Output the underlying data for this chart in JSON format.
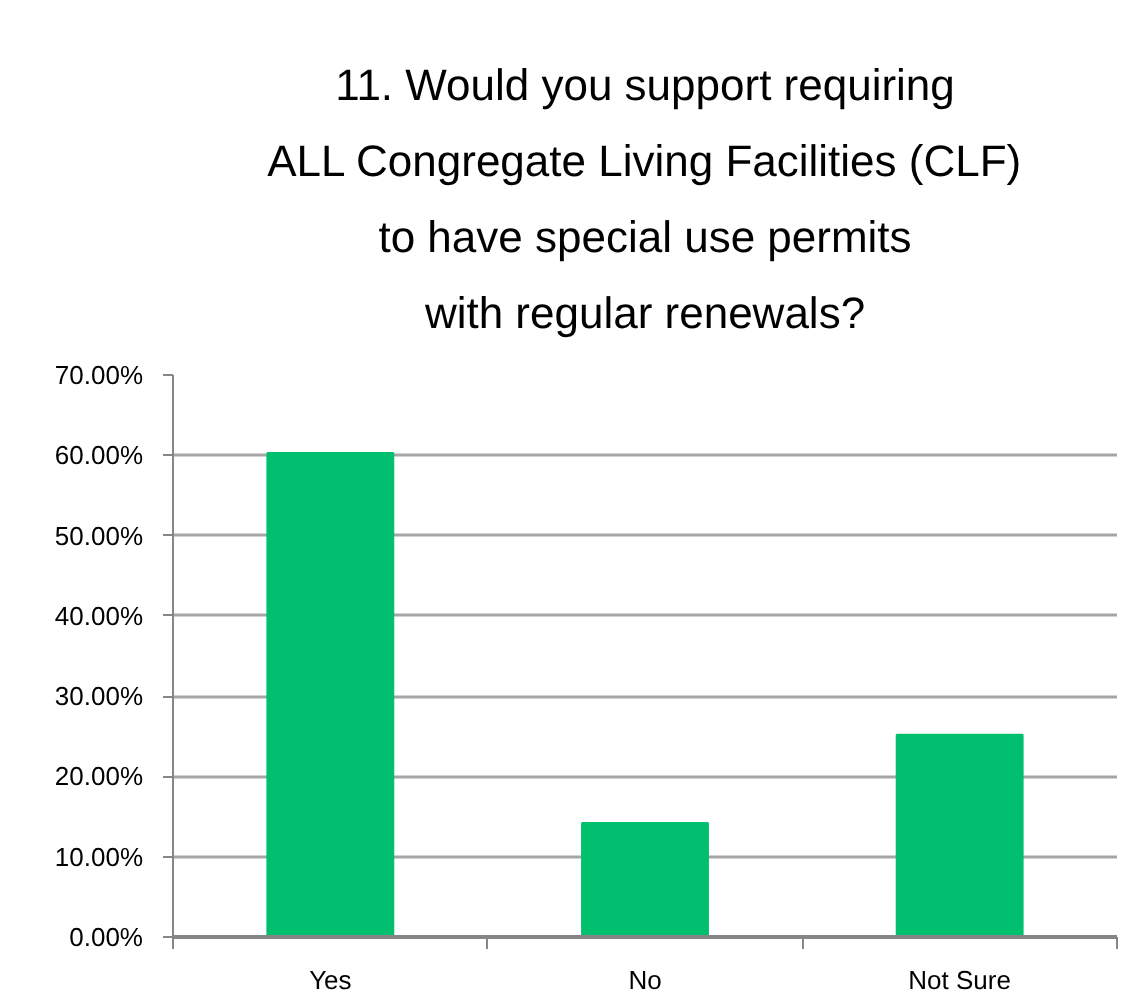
{
  "chart_data": {
    "type": "bar",
    "title": "11. Would you support requiring\nALL Congregate Living Facilities (CLF)\nto have special use permits\nwith regular renewals?",
    "categories": [
      "Yes",
      "No",
      "Not Sure"
    ],
    "values": [
      60.3,
      14.2,
      25.2
    ],
    "color": "#00bf6f",
    "ylim": [
      0,
      70
    ],
    "yticks": [
      {
        "value": 0,
        "label": "0.00%"
      },
      {
        "value": 10,
        "label": "10.00%"
      },
      {
        "value": 20,
        "label": "20.00%"
      },
      {
        "value": 30,
        "label": "30.00%"
      },
      {
        "value": 40,
        "label": "40.00%"
      },
      {
        "value": 50,
        "label": "50.00%"
      },
      {
        "value": 60,
        "label": "60.00%"
      },
      {
        "value": 70,
        "label": "70.00%"
      }
    ],
    "grid": "y"
  }
}
